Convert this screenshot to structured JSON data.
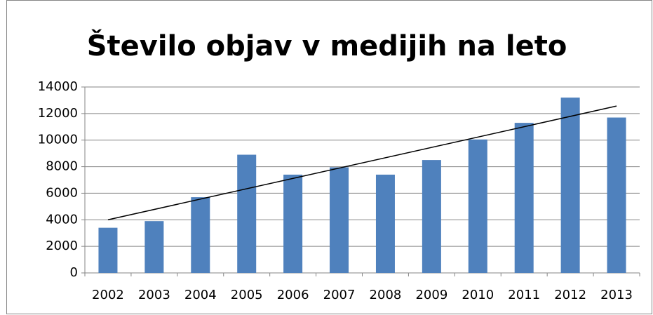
{
  "chart_data": {
    "type": "bar",
    "title": "Število objav v medijih na leto",
    "categories": [
      "2002",
      "2003",
      "2004",
      "2005",
      "2006",
      "2007",
      "2008",
      "2009",
      "2010",
      "2011",
      "2012",
      "2013"
    ],
    "values": [
      3400,
      3900,
      5700,
      8900,
      7400,
      7950,
      7400,
      8500,
      10050,
      11300,
      13200,
      11700
    ],
    "color": "#4f81bd",
    "ylim": [
      0,
      14000
    ],
    "yticks": [
      0,
      2000,
      4000,
      6000,
      8000,
      10000,
      12000,
      14000
    ],
    "grid": true,
    "trendline": true,
    "trendline_color": "#000000"
  }
}
